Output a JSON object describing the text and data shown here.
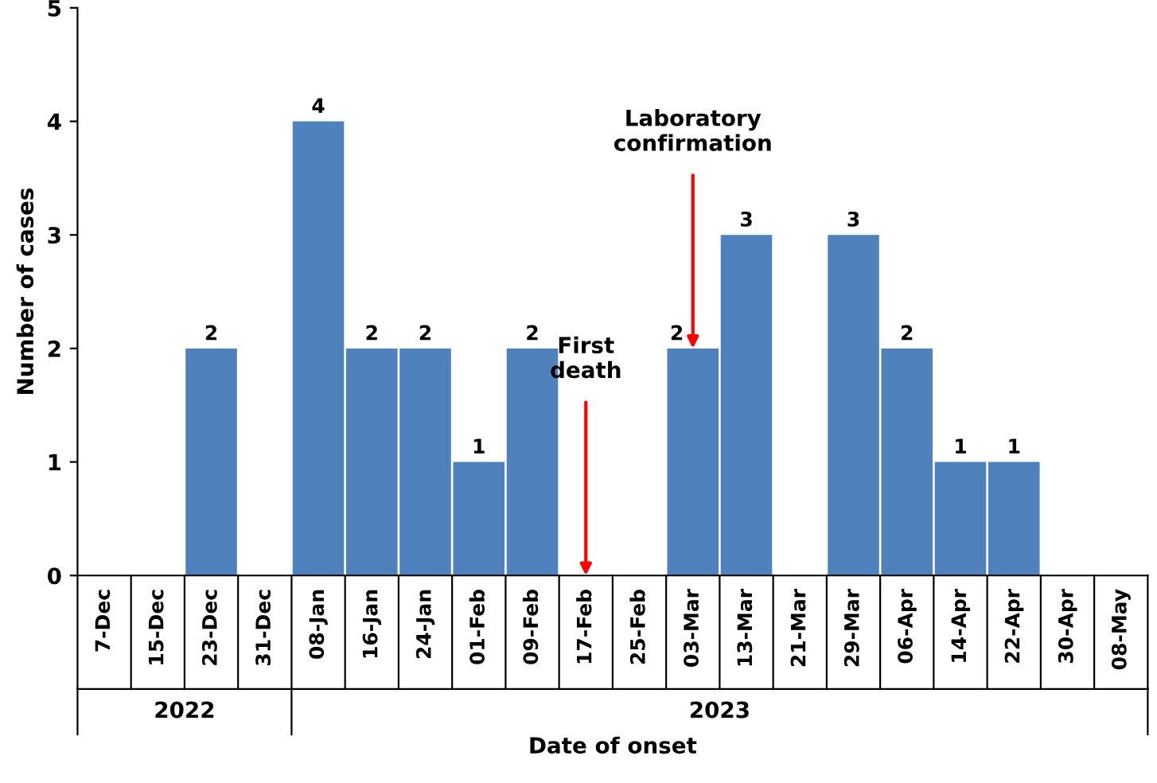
{
  "chart_data": {
    "type": "bar",
    "xlabel": "Date of onset",
    "ylabel": "Number of cases",
    "categories": [
      "7-Dec",
      "15-Dec",
      "23-Dec",
      "31-Dec",
      "08-Jan",
      "16-Jan",
      "24-Jan",
      "01-Feb",
      "09-Feb",
      "17-Feb",
      "25-Feb",
      "03-Mar",
      "13-Mar",
      "21-Mar",
      "29-Mar",
      "06-Apr",
      "14-Apr",
      "22-Apr",
      "30-Apr",
      "08-May"
    ],
    "values": [
      0,
      0,
      2,
      0,
      4,
      2,
      2,
      1,
      2,
      0,
      0,
      2,
      3,
      0,
      3,
      2,
      1,
      1,
      0,
      0
    ],
    "value_labels": [
      null,
      null,
      "2",
      null,
      "4",
      "2",
      "2",
      "1",
      "2",
      null,
      null,
      "2",
      "3",
      null,
      "3",
      "2",
      "1",
      "1",
      null,
      null
    ],
    "color": "#4f81bd",
    "ylim": [
      0,
      5
    ],
    "yticks": [
      0,
      1,
      2,
      3,
      4,
      5
    ],
    "grid": false,
    "annotations": [
      {
        "text": "First\ndeath",
        "x": "17-Feb",
        "y": 0
      },
      {
        "text": "Laboratory\nconfirmation",
        "x": "03-Mar",
        "y": 2
      },
      "2022",
      "2023"
    ]
  }
}
